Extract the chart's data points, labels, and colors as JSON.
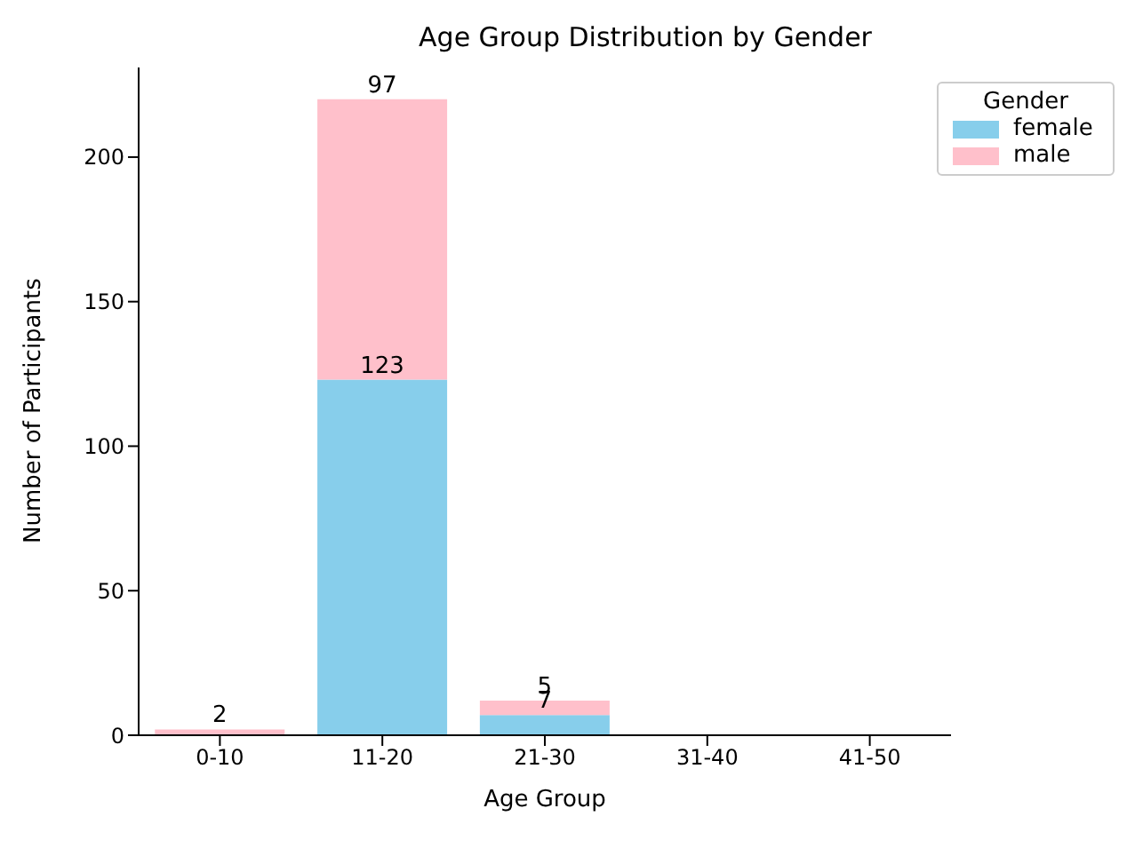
{
  "chart_data": {
    "type": "bar",
    "title": "Age Group Distribution by Gender",
    "xlabel": "Age Group",
    "ylabel": "Number of Participants",
    "legend_title": "Gender",
    "categories": [
      "0-10",
      "11-20",
      "21-30",
      "31-40",
      "41-50"
    ],
    "stacked": true,
    "series": [
      {
        "name": "female",
        "color": "#87ceeb",
        "values": [
          0,
          123,
          7,
          0,
          0
        ],
        "value_labels": [
          null,
          "123",
          "7",
          null,
          null
        ]
      },
      {
        "name": "male",
        "color": "#ffc0cb",
        "values": [
          2,
          97,
          5,
          0,
          0
        ],
        "value_labels": [
          "2",
          "97",
          "5",
          null,
          null
        ]
      }
    ],
    "ylim": [
      0,
      231
    ],
    "yticks": [
      0,
      50,
      100,
      150,
      200
    ],
    "grid": false,
    "legend": "top right"
  }
}
